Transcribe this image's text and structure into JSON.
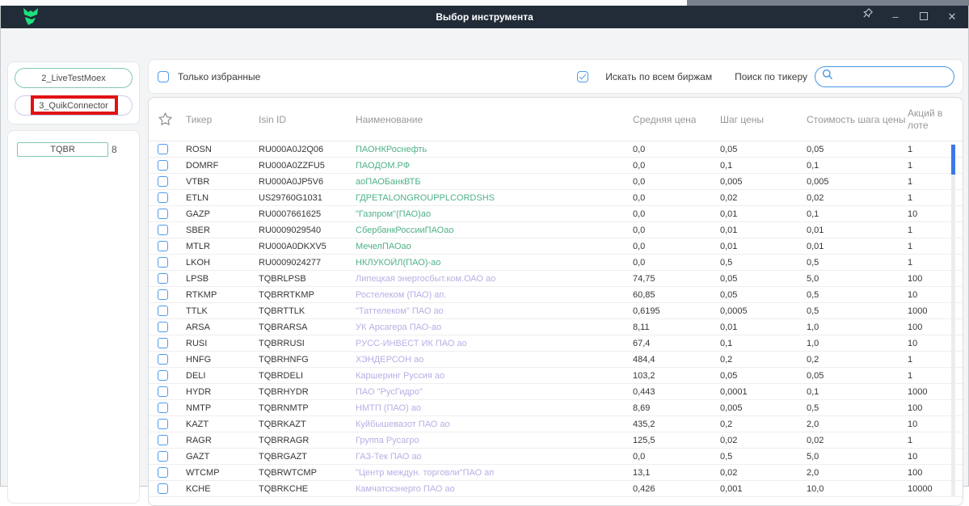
{
  "window": {
    "title": "Выбор инструмента"
  },
  "titlebar_icons": {
    "pin": "pushpin-outline",
    "minimize": "–",
    "maximize": "square-outline",
    "close": "✕",
    "logo": "green-fox"
  },
  "sidebar": {
    "connections": [
      {
        "label": "2_LiveTestMoex",
        "highlighted": false
      },
      {
        "label": "3_QuikConnector",
        "highlighted": true
      }
    ],
    "board": {
      "label": "TQBR",
      "count": "8"
    }
  },
  "toolbar": {
    "only_favorites_label": "Только избранные",
    "only_favorites_checked": false,
    "all_exchanges_label": "Искать по всем биржам",
    "all_exchanges_checked": true,
    "search_by_ticker_label": "Поиск по тикеру",
    "search_value": "",
    "search_placeholder": "",
    "search_icon": "magnifier"
  },
  "table": {
    "headers": {
      "favorite": "star-outline",
      "ticker": "Тикер",
      "isin": "Isin ID",
      "name": "Наименование",
      "avg_price": "Средняя цена",
      "price_step": "Шаг цены",
      "step_cost": "Стоимость шага цены",
      "lot_size": "Акций в лоте"
    },
    "rows": [
      {
        "ticker": "ROSN",
        "isin": "RU000A0J2Q06",
        "name": "ПАОНКРоснефть",
        "name_color": "green",
        "avg_price": "0,0",
        "price_step": "0,05",
        "step_cost": "0,05",
        "lot": "1"
      },
      {
        "ticker": "DOMRF",
        "isin": "RU000A0ZZFU5",
        "name": "ПАОДОМ.РФ",
        "name_color": "green",
        "avg_price": "0,0",
        "price_step": "0,1",
        "step_cost": "0,1",
        "lot": "1"
      },
      {
        "ticker": "VTBR",
        "isin": "RU000A0JP5V6",
        "name": "аоПАОБанкВТБ",
        "name_color": "green",
        "avg_price": "0,0",
        "price_step": "0,005",
        "step_cost": "0,005",
        "lot": "1"
      },
      {
        "ticker": "ETLN",
        "isin": "US29760G1031",
        "name": "ГДРETALONGROUPPLCORDSHS",
        "name_color": "green",
        "avg_price": "0,0",
        "price_step": "0,02",
        "step_cost": "0,02",
        "lot": "1"
      },
      {
        "ticker": "GAZP",
        "isin": "RU0007661625",
        "name": "\"Газпром\"(ПАО)ао",
        "name_color": "green",
        "avg_price": "0,0",
        "price_step": "0,01",
        "step_cost": "0,1",
        "lot": "10"
      },
      {
        "ticker": "SBER",
        "isin": "RU0009029540",
        "name": "СбербанкРоссииПАОао",
        "name_color": "green",
        "avg_price": "0,0",
        "price_step": "0,01",
        "step_cost": "0,01",
        "lot": "1"
      },
      {
        "ticker": "MTLR",
        "isin": "RU000A0DKXV5",
        "name": "МечелПАОао",
        "name_color": "green",
        "avg_price": "0,0",
        "price_step": "0,01",
        "step_cost": "0,01",
        "lot": "1"
      },
      {
        "ticker": "LKOH",
        "isin": "RU0009024277",
        "name": "НКЛУКОЙЛ(ПАО)-ао",
        "name_color": "green",
        "avg_price": "0,0",
        "price_step": "0,5",
        "step_cost": "0,5",
        "lot": "1"
      },
      {
        "ticker": "LPSB",
        "isin": "TQBRLPSB",
        "name": "Липецкая энергосбыт.ком.ОАО ао",
        "name_color": "lavender",
        "avg_price": "74,75",
        "price_step": "0,05",
        "step_cost": "5,0",
        "lot": "100"
      },
      {
        "ticker": "RTKMP",
        "isin": "TQBRRTKMP",
        "name": "Ростелеком (ПАО) ап.",
        "name_color": "lavender",
        "avg_price": "60,85",
        "price_step": "0,05",
        "step_cost": "0,5",
        "lot": "10"
      },
      {
        "ticker": "TTLK",
        "isin": "TQBRTTLK",
        "name": "\"Таттелеком\" ПАО ао",
        "name_color": "lavender",
        "avg_price": "0,6195",
        "price_step": "0,0005",
        "step_cost": "0,5",
        "lot": "1000"
      },
      {
        "ticker": "ARSA",
        "isin": "TQBRARSA",
        "name": "УК Арсагера ПАО-ао",
        "name_color": "lavender",
        "avg_price": "8,11",
        "price_step": "0,01",
        "step_cost": "1,0",
        "lot": "100"
      },
      {
        "ticker": "RUSI",
        "isin": "TQBRRUSI",
        "name": "РУСС-ИНВЕСТ ИК ПАО ао",
        "name_color": "lavender",
        "avg_price": "67,4",
        "price_step": "0,1",
        "step_cost": "1,0",
        "lot": "10"
      },
      {
        "ticker": "HNFG",
        "isin": "TQBRHNFG",
        "name": "ХЭНДЕРСОН ао",
        "name_color": "lavender",
        "avg_price": "484,4",
        "price_step": "0,2",
        "step_cost": "0,2",
        "lot": "1"
      },
      {
        "ticker": "DELI",
        "isin": "TQBRDELI",
        "name": "Каршеринг Руссия ао",
        "name_color": "lavender",
        "avg_price": "103,2",
        "price_step": "0,05",
        "step_cost": "0,05",
        "lot": "1"
      },
      {
        "ticker": "HYDR",
        "isin": "TQBRHYDR",
        "name": "ПАО \"РусГидро\"",
        "name_color": "lavender",
        "avg_price": "0,443",
        "price_step": "0,0001",
        "step_cost": "0,1",
        "lot": "1000"
      },
      {
        "ticker": "NMTP",
        "isin": "TQBRNMTP",
        "name": "НМТП (ПАО) ао",
        "name_color": "lavender",
        "avg_price": "8,69",
        "price_step": "0,005",
        "step_cost": "0,5",
        "lot": "100"
      },
      {
        "ticker": "KAZT",
        "isin": "TQBRKAZT",
        "name": "Куйбышевазот ПАО ао",
        "name_color": "lavender",
        "avg_price": "435,2",
        "price_step": "0,2",
        "step_cost": "2,0",
        "lot": "10"
      },
      {
        "ticker": "RAGR",
        "isin": "TQBRRAGR",
        "name": "Группа Русагро",
        "name_color": "lavender",
        "avg_price": "125,5",
        "price_step": "0,02",
        "step_cost": "0,02",
        "lot": "1"
      },
      {
        "ticker": "GAZT",
        "isin": "TQBRGAZT",
        "name": "ГАЗ-Тек ПАО ао",
        "name_color": "lavender",
        "avg_price": "0,0",
        "price_step": "0,5",
        "step_cost": "5,0",
        "lot": "10"
      },
      {
        "ticker": "WTCMP",
        "isin": "TQBRWTCMP",
        "name": "\"Центр междун. торговли\"ПАО ап",
        "name_color": "lavender",
        "avg_price": "13,1",
        "price_step": "0,02",
        "step_cost": "2,0",
        "lot": "100"
      },
      {
        "ticker": "KCHE",
        "isin": "TQBRKCHE",
        "name": "Камчатскэнерго ПАО ао",
        "name_color": "lavender",
        "avg_price": "0,426",
        "price_step": "0,001",
        "step_cost": "10,0",
        "lot": "10000"
      }
    ]
  },
  "colors": {
    "titlebar_bg": "#212c38",
    "logo_green": "#1ee07d",
    "accent_blue": "#4796e8",
    "scrollbar_blue": "#3c78e8",
    "name_green": "#4fb188",
    "name_lavender": "#b7afe4",
    "teal_border": "#82c7b2",
    "lavender_border": "#cdc9ea",
    "highlight_red": "#e01212"
  }
}
